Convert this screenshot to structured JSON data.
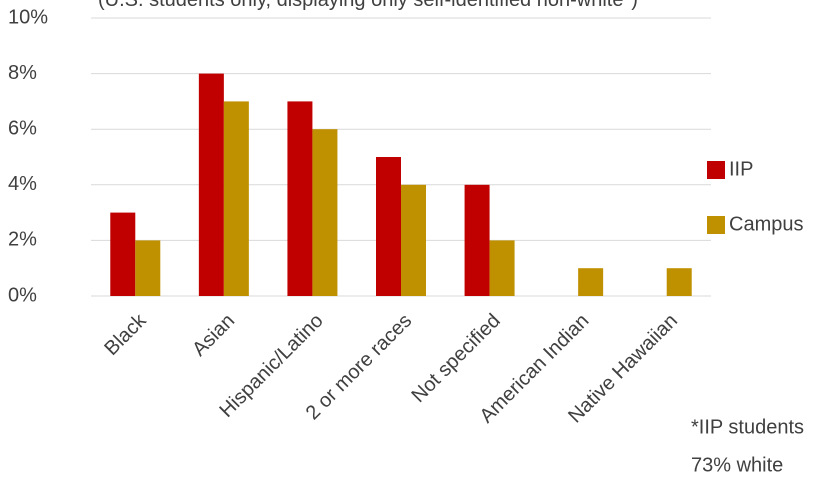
{
  "chart_data": {
    "type": "bar",
    "subtitle": "(U.S. students only, displaying only self-identified non-white*)",
    "categories": [
      "Black",
      "Asian",
      "Hispanic/Latino",
      "2 or more races",
      "Not specified",
      "American Indian",
      "Native Hawaiian"
    ],
    "series": [
      {
        "name": "IIP",
        "color": "#c00000",
        "values": [
          3,
          8,
          7,
          5,
          4,
          0,
          0
        ]
      },
      {
        "name": "Campus",
        "color": "#bf9000",
        "values": [
          2,
          7,
          6,
          4,
          2,
          1,
          1
        ]
      }
    ],
    "ylim": [
      0,
      10
    ],
    "yticks": [
      {
        "value": 0,
        "label": "0%"
      },
      {
        "value": 2,
        "label": "2%"
      },
      {
        "value": 4,
        "label": "4%"
      },
      {
        "value": 6,
        "label": "6%"
      },
      {
        "value": 8,
        "label": "8%"
      },
      {
        "value": 10,
        "label": "10%"
      }
    ],
    "grid": true,
    "legend": "right",
    "annotation": [
      "*IIP students",
      "73% white"
    ]
  }
}
